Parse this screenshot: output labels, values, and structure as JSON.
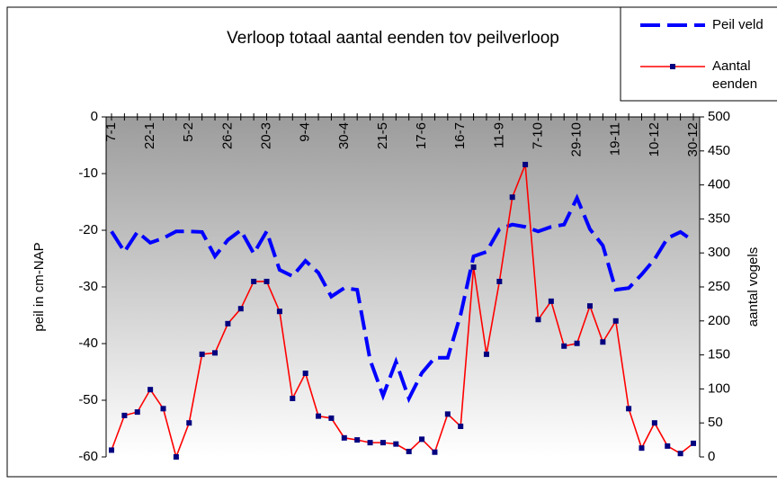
{
  "chart_data": {
    "type": "line",
    "title": "Verloop totaal aantal eenden tov peilverloop",
    "ylabel": "peil in cm-NAP",
    "y2label": "aantal vogels",
    "categories": [
      "7-1",
      null,
      null,
      "22-1",
      null,
      null,
      "5-2",
      null,
      null,
      "26-2",
      null,
      null,
      "20-3",
      null,
      null,
      "9-4",
      null,
      null,
      "30-4",
      null,
      null,
      "21-5",
      null,
      null,
      "17-6",
      null,
      null,
      "16-7",
      null,
      null,
      "11-9",
      null,
      null,
      "7-10",
      null,
      null,
      "29-10",
      null,
      null,
      "19-11",
      null,
      null,
      "10-12",
      null,
      null,
      "30-12"
    ],
    "ylim": [
      -60,
      0
    ],
    "yticks": [
      0,
      -10,
      -20,
      -30,
      -40,
      -50,
      -60
    ],
    "y2lim": [
      0,
      500
    ],
    "y2ticks": [
      0,
      50,
      100,
      150,
      200,
      250,
      300,
      350,
      400,
      450,
      500
    ],
    "legend": "top-right",
    "series": [
      {
        "name": "Peil veld",
        "color": "#0000ff",
        "style": "dashed",
        "values": [
          -20.2,
          -23.8,
          -20.3,
          -22.2,
          -21.4,
          -20.2,
          -20.2,
          -20.3,
          -24.6,
          -21.7,
          -20,
          -24.1,
          -20.2,
          -27,
          -28.1,
          -25.4,
          -27.5,
          -31.7,
          -30.2,
          -30.5,
          -42.9,
          -49.2,
          -43.2,
          -49.7,
          -45.2,
          -42.5,
          -42.5,
          -34.9,
          -24.6,
          -23.8,
          -19.8,
          -19,
          -19.4,
          -20.2,
          -19.4,
          -19,
          -14.3,
          -19.8,
          -22.7,
          -30.5,
          -30.2,
          -27.8,
          -25.1,
          -21.4,
          -20.3,
          -21.9
        ]
      },
      {
        "name": "Aantal eenden",
        "color": "#ff0000",
        "marker_color": "#000080",
        "axis": "y2",
        "values": [
          10,
          61,
          66,
          99,
          71,
          0,
          50,
          151,
          153,
          196,
          218,
          258,
          258,
          214,
          86,
          123,
          60,
          57,
          28,
          25,
          21,
          21,
          19,
          8,
          26,
          7,
          63,
          45,
          279,
          151,
          258,
          382,
          430,
          202,
          229,
          163,
          167,
          222,
          169,
          200,
          71,
          13,
          50,
          16,
          5,
          20
        ]
      }
    ]
  }
}
